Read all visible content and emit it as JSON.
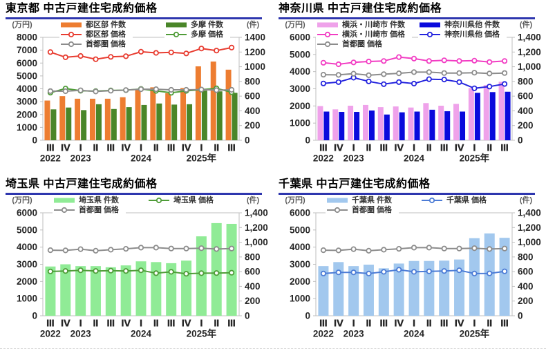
{
  "page": {
    "background": "#ffffff"
  },
  "chart_data": [
    {
      "id": "tokyo",
      "type": "bar",
      "subtype": "combo-bar-line",
      "title": "東京都 中古戸建住宅成約価格",
      "left_axis": {
        "unit": "(万円)",
        "min": 0,
        "max": 8000,
        "step": 1000,
        "tick_labels": [
          "8000",
          "7000",
          "6000",
          "5000",
          "4000",
          "3000",
          "2000",
          "1000",
          "0"
        ]
      },
      "right_axis": {
        "unit": "(件)",
        "min": 0,
        "max": 1400,
        "step": 200,
        "tick_labels": [
          "1400",
          "1200",
          "1000",
          "800",
          "600",
          "400",
          "200",
          "0"
        ]
      },
      "categories": [
        "Ⅲ",
        "Ⅳ",
        "Ⅰ",
        "Ⅱ",
        "Ⅲ",
        "Ⅳ",
        "Ⅰ",
        "Ⅱ",
        "Ⅲ",
        "Ⅳ",
        "Ⅰ",
        "Ⅱ",
        "Ⅲ"
      ],
      "year_labels": [
        {
          "text": "2022",
          "index": 0
        },
        {
          "text": "2023",
          "index": 2
        },
        {
          "text": "2024",
          "index": 6
        },
        {
          "text": "2025年",
          "index": 10
        }
      ],
      "series": [
        {
          "name": "都区部 件数",
          "kind": "bar",
          "axis": "right",
          "color": "#ED7D31",
          "values": [
            540,
            600,
            565,
            565,
            565,
            585,
            690,
            720,
            640,
            710,
            1005,
            1070,
            960
          ]
        },
        {
          "name": "多摩 件数",
          "kind": "bar",
          "axis": "right",
          "color": "#4A8629",
          "values": [
            420,
            445,
            410,
            490,
            425,
            450,
            480,
            500,
            485,
            490,
            675,
            665,
            645
          ]
        },
        {
          "name": "都区部 価格",
          "kind": "line",
          "axis": "left",
          "color": "#E83C30",
          "values": [
            6850,
            6450,
            6550,
            6300,
            6480,
            6530,
            6880,
            6790,
            6830,
            6750,
            7130,
            6970,
            7200
          ]
        },
        {
          "name": "多摩 価格",
          "kind": "line",
          "axis": "left",
          "color": "#4F9C38",
          "values": [
            3700,
            4020,
            3850,
            3820,
            3870,
            3890,
            3990,
            3840,
            3690,
            3840,
            3930,
            4030,
            3730
          ]
        },
        {
          "name": "首都圏 価格",
          "kind": "line",
          "axis": "left",
          "color": "#8C8C8C",
          "values": [
            3820,
            3810,
            3880,
            3790,
            3850,
            3900,
            3970,
            3970,
            3920,
            3920,
            3940,
            3890,
            3920
          ]
        }
      ],
      "legend": {
        "rows": [
          [
            0,
            1
          ],
          [
            2,
            3
          ],
          [
            4
          ]
        ],
        "cols": [
          88,
          240
        ]
      }
    },
    {
      "id": "kanagawa",
      "type": "bar",
      "subtype": "combo-bar-line",
      "title": "神奈川県 中古戸建住宅成約価格",
      "left_axis": {
        "unit": "(万円)",
        "min": 0,
        "max": 6000,
        "step": 1000,
        "tick_labels": [
          "6000",
          "5000",
          "4000",
          "3000",
          "2000",
          "1000",
          "0"
        ]
      },
      "right_axis": {
        "unit": "(件)",
        "min": 0,
        "max": 1400,
        "step": 200,
        "tick_labels": [
          "1,400",
          "1,200",
          "1,000",
          "800",
          "600",
          "400",
          "200",
          "0"
        ]
      },
      "categories": [
        "Ⅲ",
        "Ⅳ",
        "Ⅰ",
        "Ⅱ",
        "Ⅲ",
        "Ⅳ",
        "Ⅰ",
        "Ⅱ",
        "Ⅲ",
        "Ⅳ",
        "Ⅰ",
        "Ⅱ",
        "Ⅲ"
      ],
      "year_labels": [
        {
          "text": "2022",
          "index": 0
        },
        {
          "text": "2023",
          "index": 2
        },
        {
          "text": "2024",
          "index": 6
        },
        {
          "text": "2025年",
          "index": 10
        }
      ],
      "series": [
        {
          "name": "横浜・川崎市 件数",
          "kind": "bar",
          "axis": "right",
          "color": "#EFA2EA",
          "values": [
            465,
            420,
            470,
            480,
            450,
            460,
            445,
            505,
            470,
            495,
            710,
            750,
            795
          ]
        },
        {
          "name": "神奈川県他 件数",
          "kind": "bar",
          "axis": "right",
          "color": "#0A0ADC",
          "values": [
            390,
            385,
            385,
            405,
            350,
            380,
            390,
            415,
            395,
            390,
            645,
            655,
            660
          ]
        },
        {
          "name": "横浜・川崎市 価格",
          "kind": "line",
          "axis": "left",
          "color": "#F23CC3",
          "values": [
            4520,
            4430,
            4540,
            4590,
            4620,
            4850,
            4760,
            4620,
            4660,
            4620,
            4640,
            4560,
            4620
          ]
        },
        {
          "name": "神奈川県他 価格",
          "kind": "line",
          "axis": "left",
          "color": "#2424DE",
          "values": [
            3310,
            3390,
            3650,
            3430,
            3270,
            3390,
            3300,
            3560,
            3540,
            3390,
            3030,
            3130,
            3280
          ]
        },
        {
          "name": "首都圏 価格",
          "kind": "line",
          "axis": "left",
          "color": "#8C8C8C",
          "values": [
            3820,
            3810,
            3880,
            3790,
            3850,
            3900,
            3970,
            3970,
            3920,
            3920,
            3940,
            3890,
            3920
          ]
        }
      ],
      "legend": {
        "rows": [
          [
            0,
            1
          ],
          [
            2,
            3
          ],
          [
            4
          ]
        ],
        "cols": [
          64,
          212
        ]
      }
    },
    {
      "id": "saitama",
      "type": "bar",
      "subtype": "combo-bar-line",
      "title": "埼玉県 中古戸建住宅成約価格",
      "left_axis": {
        "unit": "(万円)",
        "min": 0,
        "max": 6000,
        "step": 1000,
        "tick_labels": [
          "6000",
          "5000",
          "4000",
          "3000",
          "2000",
          "1000",
          "0"
        ]
      },
      "right_axis": {
        "unit": "(件)",
        "min": 0,
        "max": 1400,
        "step": 200,
        "tick_labels": [
          "1,400",
          "1,200",
          "1,000",
          "800",
          "600",
          "400",
          "200",
          "0"
        ]
      },
      "categories": [
        "Ⅲ",
        "Ⅳ",
        "Ⅰ",
        "Ⅱ",
        "Ⅲ",
        "Ⅳ",
        "Ⅰ",
        "Ⅱ",
        "Ⅲ",
        "Ⅳ",
        "Ⅰ",
        "Ⅱ",
        "Ⅲ"
      ],
      "year_labels": [
        {
          "text": "2022",
          "index": 0
        },
        {
          "text": "2023",
          "index": 2
        },
        {
          "text": "2024",
          "index": 6
        },
        {
          "text": "2025年",
          "index": 10
        }
      ],
      "series": [
        {
          "name": "埼玉県 件数",
          "kind": "bar",
          "axis": "right",
          "color": "#90EB96",
          "values": [
            670,
            700,
            675,
            675,
            660,
            685,
            740,
            730,
            715,
            750,
            1080,
            1260,
            1250
          ]
        },
        {
          "name": "埼玉県 価格",
          "kind": "line",
          "axis": "left",
          "color": "#4F9C38",
          "values": [
            2580,
            2610,
            2650,
            2610,
            2630,
            2610,
            2650,
            2480,
            2560,
            2450,
            2480,
            2490,
            2510
          ]
        },
        {
          "name": "首都圏 価格",
          "kind": "line",
          "axis": "left",
          "color": "#8C8C8C",
          "values": [
            3820,
            3810,
            3880,
            3790,
            3850,
            3900,
            3970,
            3970,
            3920,
            3920,
            3940,
            3890,
            3920
          ]
        }
      ],
      "legend": {
        "rows": [
          [
            0,
            1
          ],
          [
            2
          ]
        ],
        "cols": [
          78,
          215
        ]
      }
    },
    {
      "id": "chiba",
      "type": "bar",
      "subtype": "combo-bar-line",
      "title": "千葉県 中古戸建住宅成約価格",
      "left_axis": {
        "unit": "(万円)",
        "min": 0,
        "max": 6000,
        "step": 1000,
        "tick_labels": [
          "6000",
          "5000",
          "4000",
          "3000",
          "2000",
          "1000",
          "0"
        ]
      },
      "right_axis": {
        "unit": "(件)",
        "min": 0,
        "max": 1400,
        "step": 200,
        "tick_labels": [
          "1,400",
          "1,200",
          "1,000",
          "800",
          "600",
          "400",
          "200",
          "0"
        ]
      },
      "categories": [
        "Ⅲ",
        "Ⅳ",
        "Ⅰ",
        "Ⅱ",
        "Ⅲ",
        "Ⅳ",
        "Ⅰ",
        "Ⅱ",
        "Ⅲ",
        "Ⅳ",
        "Ⅰ",
        "Ⅱ",
        "Ⅲ"
      ],
      "year_labels": [
        {
          "text": "2022",
          "index": 0
        },
        {
          "text": "2023",
          "index": 2
        },
        {
          "text": "2024",
          "index": 6
        },
        {
          "text": "2025年",
          "index": 10
        }
      ],
      "series": [
        {
          "name": "千葉県 件数",
          "kind": "bar",
          "axis": "right",
          "color": "#A2C8EE",
          "values": [
            675,
            730,
            675,
            695,
            645,
            710,
            745,
            745,
            750,
            765,
            1055,
            1120,
            1060
          ]
        },
        {
          "name": "千葉県 価格",
          "kind": "line",
          "axis": "left",
          "color": "#4C7CD6",
          "values": [
            2460,
            2530,
            2530,
            2460,
            2560,
            2680,
            2560,
            2590,
            2610,
            2650,
            2460,
            2470,
            2590
          ]
        },
        {
          "name": "首都圏 価格",
          "kind": "line",
          "axis": "left",
          "color": "#8C8C8C",
          "values": [
            3820,
            3810,
            3880,
            3790,
            3850,
            3900,
            3970,
            3970,
            3920,
            3920,
            3940,
            3890,
            3920
          ]
        }
      ],
      "legend": {
        "rows": [
          [
            0,
            1
          ],
          [
            2
          ]
        ],
        "cols": [
          78,
          215
        ]
      }
    }
  ]
}
